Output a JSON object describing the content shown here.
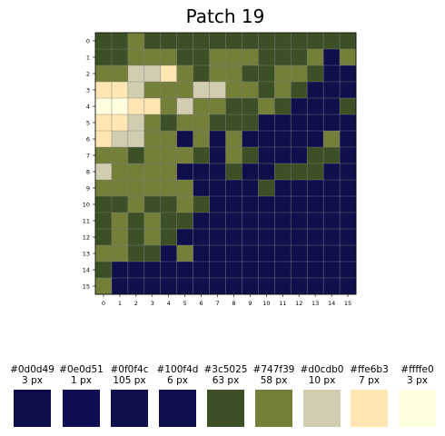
{
  "chart_data": {
    "type": "heatmap",
    "title": "Patch 19",
    "x_ticks": [
      "0",
      "1",
      "2",
      "3",
      "4",
      "5",
      "6",
      "7",
      "8",
      "9",
      "10",
      "11",
      "12",
      "13",
      "14",
      "15"
    ],
    "y_ticks": [
      "0",
      "1",
      "2",
      "3",
      "4",
      "5",
      "6",
      "7",
      "8",
      "9",
      "10",
      "11",
      "12",
      "13",
      "14",
      "15"
    ],
    "grid": true,
    "palette": [
      "#0f0f4c",
      "#3c5025",
      "#747f39",
      "#d0cdb0",
      "#ffe6b3",
      "#ffffe0"
    ],
    "cells": [
      [
        1,
        1,
        2,
        1,
        1,
        1,
        1,
        1,
        1,
        1,
        1,
        1,
        1,
        1,
        1,
        1
      ],
      [
        1,
        1,
        2,
        2,
        2,
        1,
        1,
        2,
        2,
        2,
        1,
        1,
        1,
        2,
        0,
        2
      ],
      [
        2,
        2,
        3,
        3,
        4,
        2,
        1,
        2,
        2,
        1,
        1,
        2,
        2,
        1,
        0,
        0
      ],
      [
        4,
        4,
        3,
        2,
        2,
        2,
        3,
        3,
        2,
        2,
        1,
        2,
        1,
        0,
        0,
        0
      ],
      [
        5,
        5,
        4,
        4,
        2,
        3,
        2,
        2,
        1,
        1,
        2,
        1,
        0,
        0,
        0,
        1
      ],
      [
        4,
        4,
        3,
        2,
        1,
        2,
        2,
        1,
        1,
        1,
        0,
        0,
        0,
        0,
        0,
        0
      ],
      [
        4,
        3,
        3,
        2,
        2,
        0,
        2,
        0,
        2,
        0,
        0,
        0,
        0,
        0,
        2,
        0
      ],
      [
        2,
        2,
        1,
        2,
        2,
        2,
        1,
        0,
        2,
        1,
        0,
        0,
        0,
        1,
        1,
        0
      ],
      [
        3,
        2,
        2,
        2,
        2,
        0,
        0,
        0,
        1,
        0,
        0,
        1,
        1,
        1,
        0,
        0
      ],
      [
        2,
        2,
        2,
        2,
        2,
        2,
        0,
        0,
        0,
        0,
        1,
        0,
        0,
        0,
        0,
        0
      ],
      [
        1,
        1,
        2,
        1,
        1,
        2,
        1,
        0,
        0,
        0,
        0,
        0,
        0,
        0,
        0,
        0
      ],
      [
        1,
        2,
        1,
        2,
        1,
        1,
        0,
        0,
        0,
        0,
        0,
        0,
        0,
        0,
        0,
        0
      ],
      [
        1,
        2,
        1,
        2,
        1,
        0,
        0,
        0,
        0,
        0,
        0,
        0,
        0,
        0,
        0,
        0
      ],
      [
        2,
        2,
        1,
        1,
        0,
        2,
        0,
        0,
        0,
        0,
        0,
        0,
        0,
        0,
        0,
        0
      ],
      [
        1,
        0,
        0,
        0,
        0,
        0,
        0,
        0,
        0,
        0,
        0,
        0,
        0,
        0,
        0,
        0
      ],
      [
        2,
        0,
        0,
        0,
        0,
        0,
        0,
        0,
        0,
        0,
        0,
        0,
        0,
        0,
        0,
        0
      ]
    ],
    "legend": [
      {
        "hex": "#0d0d49",
        "count": "3 px"
      },
      {
        "hex": "#0e0d51",
        "count": "1 px"
      },
      {
        "hex": "#0f0f4c",
        "count": "105 px"
      },
      {
        "hex": "#100f4d",
        "count": "6 px"
      },
      {
        "hex": "#3c5025",
        "count": "63 px"
      },
      {
        "hex": "#747f39",
        "count": "58 px"
      },
      {
        "hex": "#d0cdb0",
        "count": "10 px"
      },
      {
        "hex": "#ffe6b3",
        "count": "7 px"
      },
      {
        "hex": "#ffffe0",
        "count": "3 px"
      }
    ]
  }
}
